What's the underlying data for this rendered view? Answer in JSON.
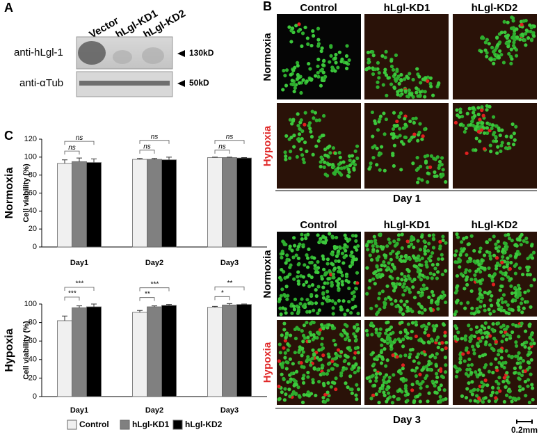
{
  "panel_a": {
    "label": "A",
    "lanes": [
      "Vector",
      "hLgl-KD1",
      "hLgl-KD2"
    ],
    "rows": [
      "anti-hLgl-1",
      "anti-αTub"
    ],
    "markers": [
      "130kD",
      "50kD"
    ]
  },
  "panel_b": {
    "label": "B",
    "columns": [
      "Control",
      "hLgl-KD1",
      "hLgl-KD2"
    ],
    "conditions": [
      "Normoxia",
      "Hypoxia"
    ],
    "days": [
      "Day 1",
      "Day 3"
    ],
    "scale_bar": "0.2mm"
  },
  "panel_c": {
    "label": "C"
  },
  "chart_data": [
    {
      "type": "bar",
      "title": "Normoxia",
      "ylabel": "Cell viability (%)",
      "categories": [
        "Day1",
        "Day2",
        "Day3"
      ],
      "series": [
        {
          "name": "Control",
          "color": "#f0f0f0",
          "values": [
            93,
            97.5,
            99.5
          ],
          "errors": [
            4,
            1,
            0.5
          ]
        },
        {
          "name": "hLgl-KD1",
          "color": "#808080",
          "values": [
            95,
            97.5,
            99.5
          ],
          "errors": [
            4,
            1,
            0.5
          ]
        },
        {
          "name": "hLgl-KD2",
          "color": "#000000",
          "values": [
            94,
            97,
            99
          ],
          "errors": [
            4,
            3,
            0.5
          ]
        }
      ],
      "significance": [
        [
          "ns",
          "ns"
        ],
        [
          "ns",
          "ns"
        ],
        [
          "ns",
          "ns"
        ]
      ],
      "ylim": [
        0,
        120
      ],
      "yticks": [
        0,
        20,
        40,
        60,
        80,
        100,
        120
      ]
    },
    {
      "type": "bar",
      "title": "Hypoxia",
      "ylabel": "Cell viability (%)",
      "categories": [
        "Day1",
        "Day2",
        "Day3"
      ],
      "series": [
        {
          "name": "Control",
          "color": "#f0f0f0",
          "values": [
            82,
            91,
            96.5
          ],
          "errors": [
            5,
            2,
            1
          ]
        },
        {
          "name": "hLgl-KD1",
          "color": "#808080",
          "values": [
            96,
            97,
            99
          ],
          "errors": [
            2,
            1,
            1.5
          ]
        },
        {
          "name": "hLgl-KD2",
          "color": "#000000",
          "values": [
            97,
            98.5,
            99.5
          ],
          "errors": [
            3,
            1,
            0.5
          ]
        }
      ],
      "significance": [
        [
          "***",
          "***"
        ],
        [
          "**",
          "***"
        ],
        [
          "*",
          "**"
        ]
      ],
      "ylim": [
        0,
        100
      ],
      "yticks": [
        0,
        20,
        40,
        60,
        80,
        100
      ],
      "legend": "bottom"
    }
  ]
}
